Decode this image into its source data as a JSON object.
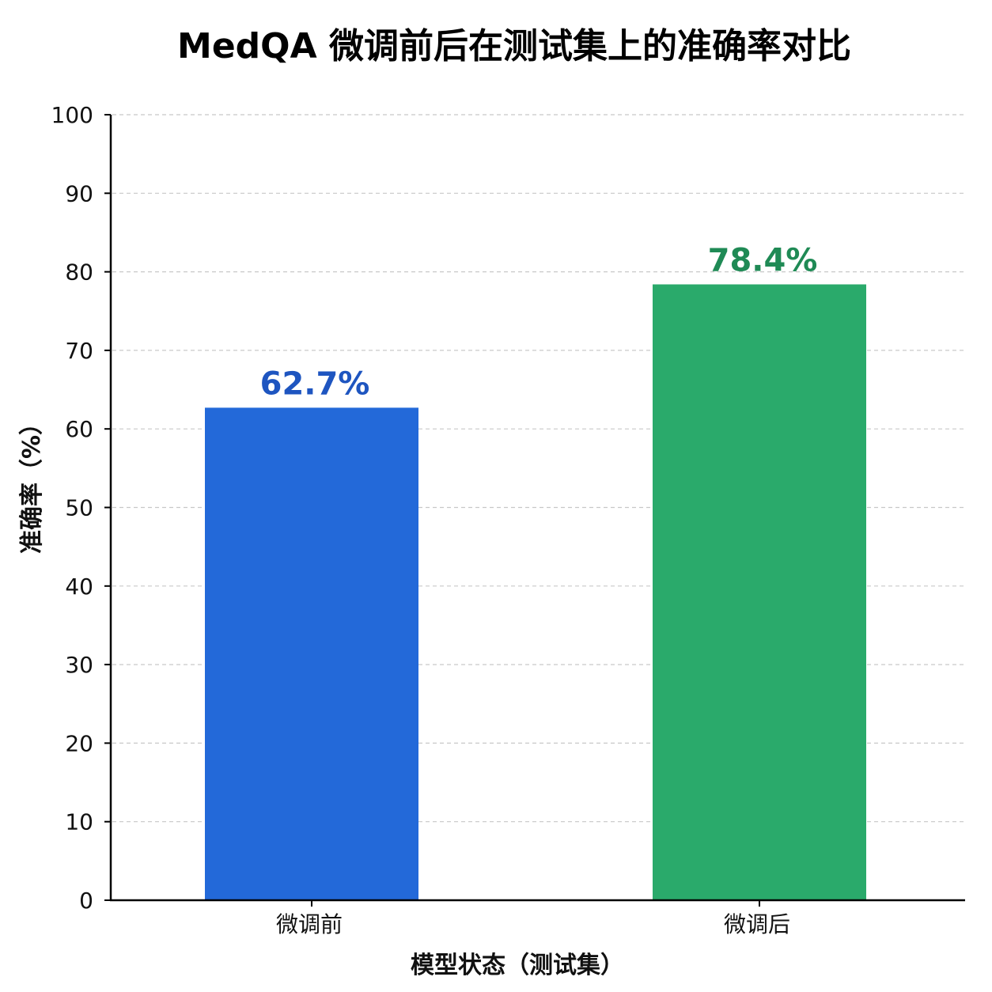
{
  "chart_data": {
    "type": "bar",
    "title": "MedQA 微调前后在测试集上的准确率对比",
    "xlabel": "模型状态（测试集）",
    "ylabel": "准确率（%）",
    "categories": [
      "微调前",
      "微调后"
    ],
    "values": [
      62.7,
      78.4
    ],
    "value_labels": [
      "62.7%",
      "78.4%"
    ],
    "bar_colors": [
      "#2369d9",
      "#2aaa6b"
    ],
    "value_label_colors": [
      "#1e55c0",
      "#1f8a55"
    ],
    "ylim": [
      0,
      100
    ],
    "yticks": [
      0,
      10,
      20,
      30,
      40,
      50,
      60,
      70,
      80,
      90,
      100
    ],
    "grid": true,
    "grid_axis": "y",
    "legend": "none"
  }
}
